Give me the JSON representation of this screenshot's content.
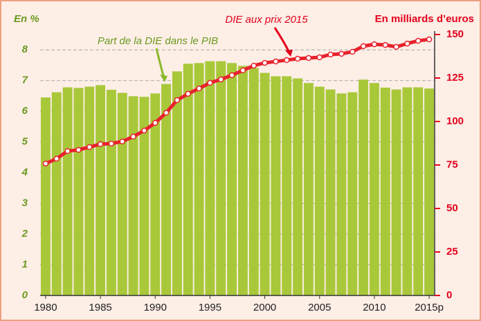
{
  "chart_data": {
    "type": "bar_line",
    "ylabel": "En %",
    "y2label": "En milliards d’euros",
    "categories": [
      "1980",
      null,
      null,
      null,
      null,
      "1985",
      null,
      null,
      null,
      null,
      "1990",
      null,
      null,
      null,
      null,
      "1995",
      null,
      null,
      null,
      null,
      "2000",
      null,
      null,
      null,
      null,
      "2005",
      null,
      null,
      null,
      null,
      "2010",
      null,
      null,
      null,
      null,
      "2015p"
    ],
    "series": [
      {
        "name": "Part de la DIE dans le PIB",
        "type": "bar",
        "color": "#a8c83a",
        "values": [
          6.45,
          6.62,
          6.78,
          6.76,
          6.8,
          6.85,
          6.7,
          6.6,
          6.49,
          6.47,
          6.58,
          6.89,
          7.3,
          7.55,
          7.57,
          7.63,
          7.63,
          7.57,
          7.48,
          7.41,
          7.25,
          7.14,
          7.14,
          7.07,
          6.92,
          6.8,
          6.71,
          6.58,
          6.62,
          7.03,
          6.92,
          6.77,
          6.71,
          6.78,
          6.78,
          6.74
        ]
      },
      {
        "name": "DIE aux prix 2015",
        "type": "line",
        "axis": "y2",
        "color": "#e8222c",
        "values": [
          75.8,
          78.6,
          83,
          83.7,
          85.3,
          87,
          87.3,
          88.5,
          91.3,
          94.8,
          99.2,
          105,
          112.3,
          115.9,
          119,
          122.2,
          124.2,
          126.6,
          129.4,
          132.1,
          133.7,
          134.5,
          135.3,
          136.1,
          136.5,
          136.9,
          138.5,
          138.9,
          140.1,
          143.3,
          144.4,
          144,
          142.9,
          144.8,
          146.4,
          147.2
        ]
      }
    ],
    "ylim": [
      0,
      8.5
    ],
    "yticks": [
      0,
      1,
      2,
      3,
      4,
      5,
      6,
      7,
      8
    ],
    "y2lim": [
      0,
      150
    ],
    "y2ticks": [
      0,
      25,
      50,
      75,
      100,
      125,
      150
    ],
    "grid": true
  }
}
